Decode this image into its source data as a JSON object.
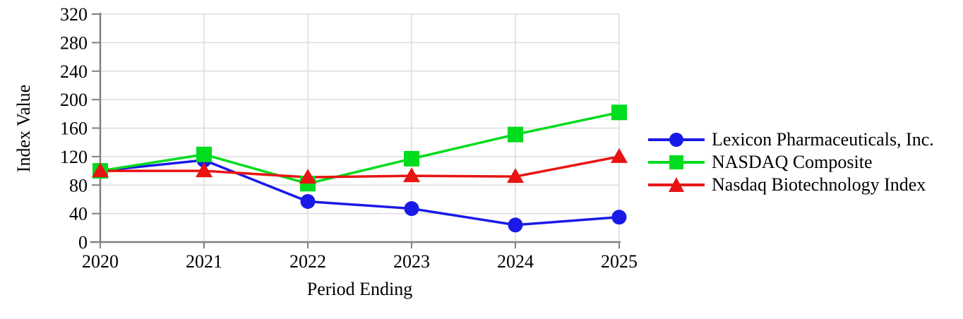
{
  "chart_data": {
    "type": "line",
    "title": "",
    "xlabel": "Period Ending",
    "ylabel": "Index Value",
    "categories": [
      "2020",
      "2021",
      "2022",
      "2023",
      "2024",
      "2025"
    ],
    "series": [
      {
        "name": "Lexicon Pharmaceuticals, Inc.",
        "color": "#1a1ae8",
        "marker": "circle",
        "values": [
          100,
          115,
          57,
          47,
          24,
          35
        ]
      },
      {
        "name": "NASDAQ Composite",
        "color": "#00dc1e",
        "marker": "square",
        "values": [
          100,
          123,
          82,
          117,
          151,
          182
        ]
      },
      {
        "name": "Nasdaq Biotechnology Index",
        "color": "#e81414",
        "marker": "triangle",
        "values": [
          100,
          100,
          91,
          93,
          92,
          120
        ]
      }
    ],
    "ylim": [
      0,
      320
    ],
    "y_tick_labels": [
      "0",
      "40",
      "80",
      "120",
      "160",
      "200",
      "240",
      "280",
      "320"
    ],
    "y_tick_values": [
      0,
      40,
      80,
      120,
      160,
      200,
      240,
      280,
      320
    ],
    "grid": true,
    "legend_position": "right"
  },
  "styles": {
    "grid_color": "#dcdcdc",
    "axis_color": "#808080",
    "text_color": "#000000",
    "background": "#ffffff"
  }
}
